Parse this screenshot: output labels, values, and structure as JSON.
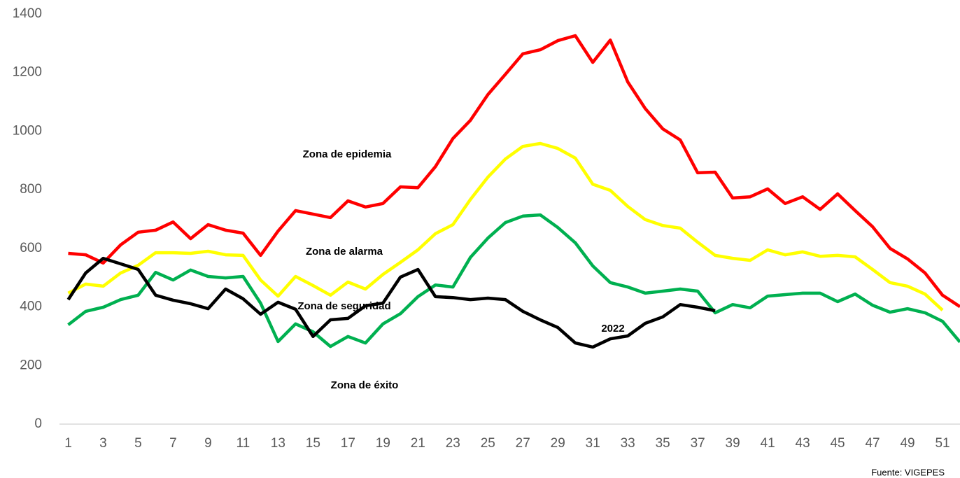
{
  "chart_data": {
    "type": "line",
    "x": [
      1,
      2,
      3,
      4,
      5,
      6,
      7,
      8,
      9,
      10,
      11,
      12,
      13,
      14,
      15,
      16,
      17,
      18,
      19,
      20,
      21,
      22,
      23,
      24,
      25,
      26,
      27,
      28,
      29,
      30,
      31,
      32,
      33,
      34,
      35,
      36,
      37,
      38,
      39,
      40,
      41,
      42,
      43,
      44,
      45,
      46,
      47,
      48,
      49,
      50,
      51,
      52
    ],
    "xlim": [
      0.5,
      52
    ],
    "xticks": [
      1,
      3,
      5,
      7,
      9,
      11,
      13,
      15,
      17,
      19,
      21,
      23,
      25,
      27,
      29,
      31,
      33,
      35,
      37,
      39,
      41,
      43,
      45,
      47,
      49,
      51
    ],
    "ylim": [
      0,
      1400
    ],
    "yticks": [
      0,
      200,
      400,
      600,
      800,
      1000,
      1200,
      1400
    ],
    "grid": false,
    "series": [
      {
        "name": "Zona de epidemia",
        "color": "#ff0000",
        "values": [
          583,
          578,
          550,
          612,
          655,
          662,
          690,
          633,
          681,
          662,
          652,
          576,
          659,
          729,
          717,
          705,
          762,
          741,
          753,
          810,
          807,
          879,
          975,
          1037,
          1125,
          1194,
          1264,
          1278,
          1309,
          1326,
          1235,
          1311,
          1168,
          1077,
          1008,
          970,
          858,
          860,
          772,
          776,
          803,
          753,
          776,
          733,
          786,
          729,
          674,
          600,
          564,
          516,
          440,
          401
        ]
      },
      {
        "name": "Zona de alarma",
        "color": "#ffff00",
        "values": [
          447,
          478,
          471,
          516,
          542,
          585,
          585,
          583,
          590,
          578,
          576,
          492,
          437,
          504,
          473,
          440,
          485,
          461,
          511,
          552,
          595,
          650,
          681,
          767,
          843,
          905,
          948,
          958,
          941,
          908,
          819,
          798,
          743,
          698,
          678,
          669,
          621,
          576,
          566,
          559,
          595,
          578,
          588,
          573,
          576,
          571,
          528,
          483,
          471,
          444,
          389,
          null
        ]
      },
      {
        "name": "Zona de seguridad",
        "color": "#00b050",
        "values": [
          339,
          385,
          399,
          425,
          440,
          518,
          492,
          526,
          504,
          499,
          504,
          413,
          282,
          342,
          315,
          265,
          299,
          277,
          342,
          377,
          435,
          475,
          468,
          569,
          635,
          688,
          710,
          714,
          671,
          619,
          540,
          483,
          468,
          447,
          454,
          461,
          454,
          380,
          408,
          397,
          437,
          442,
          447,
          447,
          418,
          444,
          406,
          382,
          394,
          380,
          351,
          280
        ]
      },
      {
        "name": "2022",
        "color": "#000000",
        "values": [
          425,
          516,
          566,
          547,
          528,
          440,
          423,
          411,
          394,
          461,
          428,
          375,
          416,
          392,
          299,
          356,
          361,
          404,
          413,
          502,
          528,
          435,
          432,
          425,
          430,
          425,
          385,
          356,
          330,
          277,
          263,
          291,
          301,
          344,
          366,
          408,
          399,
          387,
          null,
          null,
          null,
          null,
          null,
          null,
          null,
          null,
          null,
          null,
          null,
          null,
          null,
          null
        ]
      }
    ],
    "annotations": [
      "Zona de epidemia",
      "Zona de alarma",
      "Zona de seguridad",
      "2022",
      "Zona de éxito"
    ],
    "source": "Fuente: VIGEPES"
  }
}
